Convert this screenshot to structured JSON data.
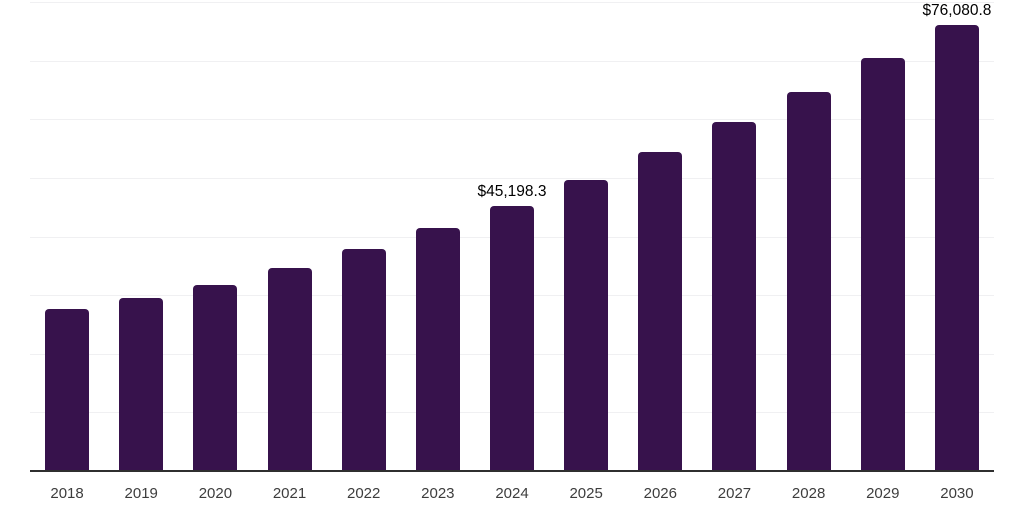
{
  "chart_data": {
    "type": "bar",
    "title": "",
    "xlabel": "",
    "ylabel": "",
    "categories": [
      "2018",
      "2019",
      "2020",
      "2021",
      "2022",
      "2023",
      "2024",
      "2025",
      "2026",
      "2027",
      "2028",
      "2029",
      "2030"
    ],
    "values": [
      27600,
      29500,
      31800,
      34600,
      37800,
      41400,
      45198.3,
      49700,
      54400,
      59500,
      64600,
      70400,
      76080.8
    ],
    "data_labels": [
      {
        "category": "2024",
        "text": "$45,198.3"
      },
      {
        "category": "2030",
        "text": "$76,080.8"
      }
    ],
    "ylim": [
      0,
      80000
    ],
    "gridline_interval": 10000,
    "grid": true,
    "legend": false,
    "y_axis_labels_visible": false,
    "colors": {
      "bar": "#37124c",
      "gridline": "#f0f0f2",
      "axis_line": "#2f2f2f",
      "tick_label": "#3d3d3d",
      "data_label": "#000000",
      "background": "#ffffff"
    }
  }
}
